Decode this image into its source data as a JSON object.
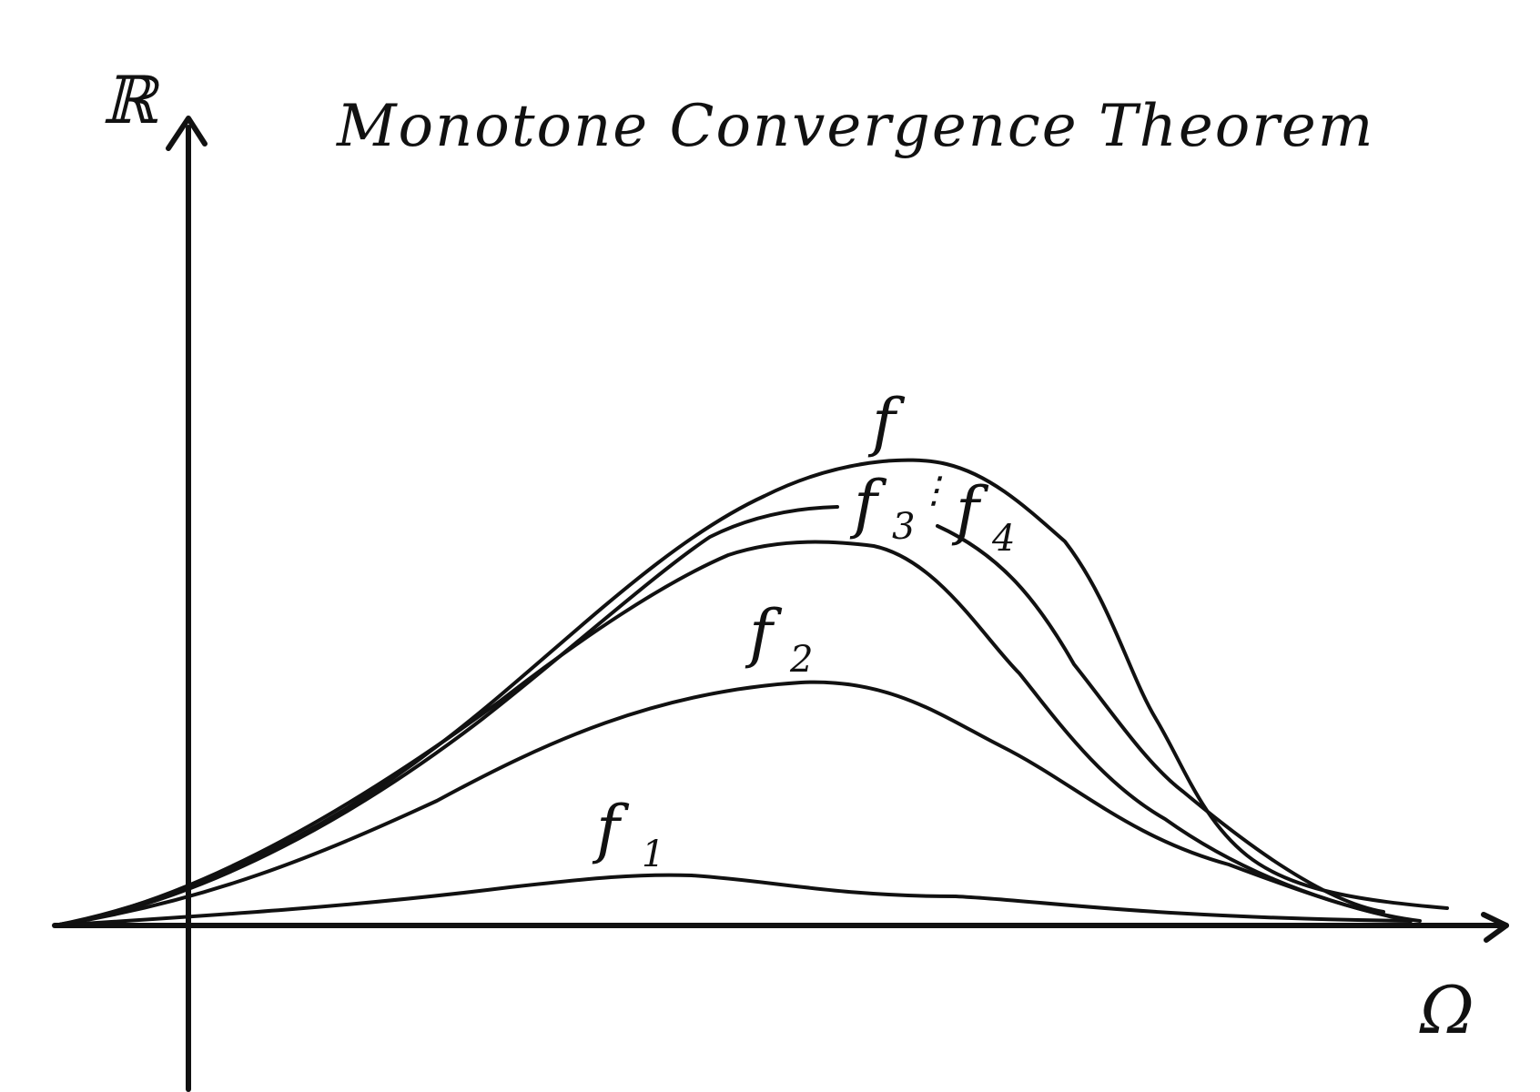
{
  "title": "Monotone Convergence Theorem",
  "axes": {
    "y_label": "ℝ",
    "x_label": "Ω"
  },
  "functions": [
    {
      "id": "f1",
      "base": "f",
      "index": "1"
    },
    {
      "id": "f2",
      "base": "f",
      "index": "2"
    },
    {
      "id": "f3",
      "base": "f",
      "index": "3"
    },
    {
      "id": "f4",
      "base": "f",
      "index": "4"
    },
    {
      "id": "f",
      "base": "f",
      "index": ""
    }
  ],
  "ellipsis": "⋮",
  "colors": {
    "ink": "#111111",
    "background": "#ffffff"
  }
}
